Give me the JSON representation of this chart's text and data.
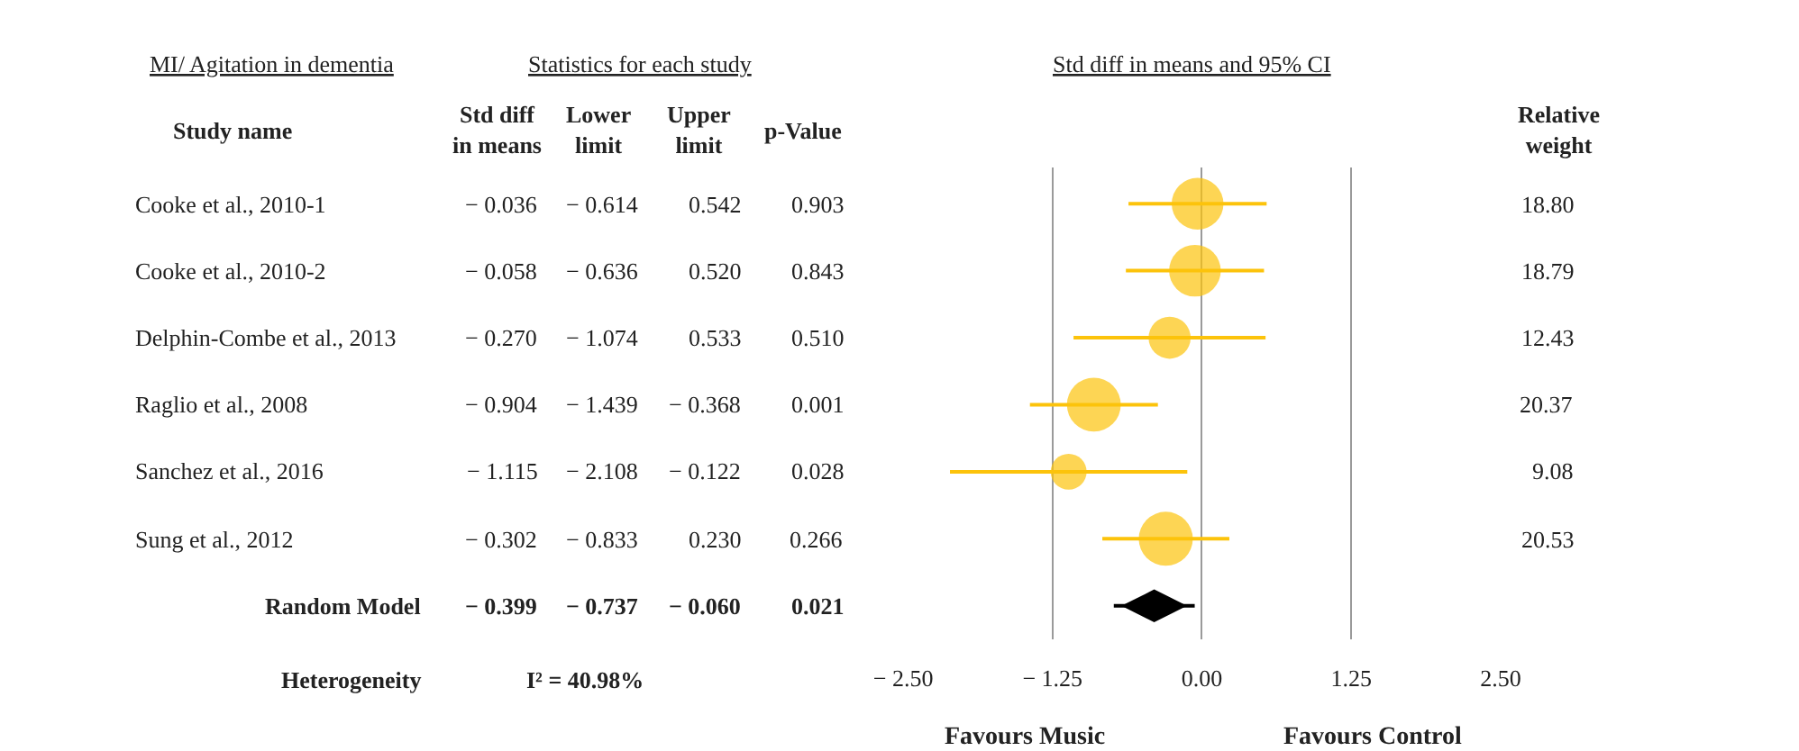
{
  "chart_data": [
    {
      "type": "other",
      "title": "MI/ Agitation in dementia",
      "subtitle": "Statistics for each study",
      "ylabel": "Study name",
      "categories": [
        "Std diff in means",
        "Lower limit",
        "Upper limit",
        "p-Value",
        "Relative weight"
      ],
      "cell_labels": [
        [
          "− 0.036",
          "− 0.614",
          "0.542",
          "0.903",
          "18.80"
        ],
        [
          "− 0.058",
          "− 0.636",
          "0.520",
          "0.843",
          "18.79"
        ],
        [
          "− 0.270",
          "− 1.074",
          "0.533",
          "0.510",
          "12.43"
        ],
        [
          "− 0.904",
          "− 1.439",
          "− 0.368",
          "0.001",
          "20.37"
        ],
        [
          "− 1.115",
          "− 2.108",
          "− 0.122",
          "0.028",
          "9.08"
        ],
        [
          "− 0.302",
          "− 0.833",
          "0.230",
          "0.266",
          "20.53"
        ],
        [
          "− 0.399",
          "− 0.737",
          "− 0.060",
          "0.021",
          null
        ]
      ],
      "annotations": [
        "Heterogeneity",
        "I² = 40.98%"
      ]
    },
    {
      "type": "bubble",
      "orientation": "horizontal",
      "title": "Std diff in means and 95% CI",
      "tick_labels": "x",
      "categories": [
        "Cooke et al., 2010-1",
        "Cooke et al., 2010-2",
        "Delphin-Combe et al., 2013",
        "Raglio et al., 2008",
        "Sanchez et al., 2016",
        "Sung et al., 2012",
        "Random Model"
      ],
      "xlim": [
        -2.5,
        2.5
      ],
      "xticks": [
        {
          "value": -2.5,
          "label": "− 2.50"
        },
        {
          "value": -1.25,
          "label": "− 1.25"
        },
        {
          "value": 0,
          "label": "0.00"
        },
        {
          "value": 1.25,
          "label": "1.25"
        },
        {
          "value": 2.5,
          "label": "2.50"
        }
      ],
      "grid": "x",
      "series": [
        {
          "color": "#fcc30b",
          "values": [
            -0.036,
            -0.058,
            -0.27,
            -0.904,
            -1.115,
            -0.302,
            null
          ],
          "errors": [
            [
              -0.614,
              0.542
            ],
            [
              -0.636,
              0.52
            ],
            [
              -1.074,
              0.533
            ],
            [
              -1.439,
              -0.368
            ],
            [
              -2.108,
              -0.122
            ],
            [
              -0.833,
              0.23
            ],
            null
          ],
          "sizes": [
            0.916,
            0.915,
            0.605,
            0.992,
            0.442,
            1,
            null
          ]
        },
        {
          "type": "scatter",
          "marker": "diamond",
          "color": "#000000",
          "values": [
            null,
            null,
            null,
            null,
            null,
            null,
            -0.399
          ],
          "errors": [
            null,
            null,
            null,
            null,
            null,
            null,
            [
              -0.737,
              -0.06
            ]
          ]
        }
      ],
      "annotations": [
        "Favours Music",
        "Favours Control"
      ]
    }
  ]
}
